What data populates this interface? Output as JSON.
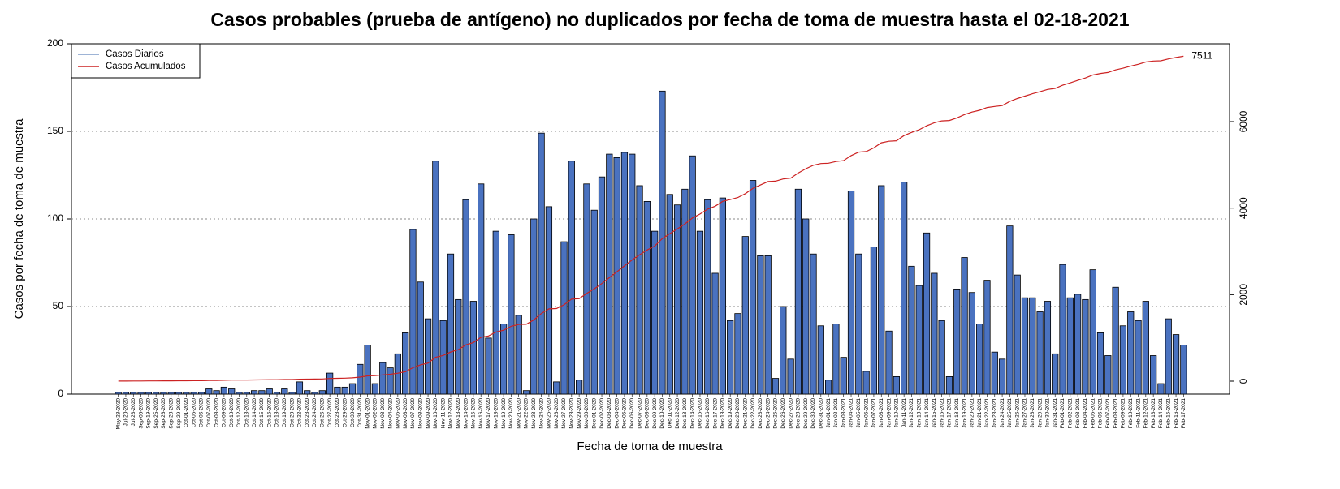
{
  "chart_data": {
    "type": "bar_line",
    "title": "Casos probables (prueba de antígeno) no duplicados por fecha de toma de muestra hasta el 02-18-2021",
    "x_label": "Fecha de toma de muestra",
    "y_label": "Casos por fecha de toma de muestra",
    "annotation": "7511",
    "legend_position": "top-left",
    "grid": true,
    "categories": [
      "May-28-2020",
      "Jul-20-2020",
      "Jul-23-2020",
      "Sep-05-2020",
      "Sep-19-2020",
      "Sep-25-2020",
      "Sep-26-2020",
      "Sep-28-2020",
      "Sep-29-2020",
      "Oct-01-2020",
      "Oct-05-2020",
      "Oct-06-2020",
      "Oct-07-2020",
      "Oct-08-2020",
      "Oct-09-2020",
      "Oct-10-2020",
      "Oct-12-2020",
      "Oct-13-2020",
      "Oct-14-2020",
      "Oct-15-2020",
      "Oct-16-2020",
      "Oct-18-2020",
      "Oct-19-2020",
      "Oct-20-2020",
      "Oct-22-2020",
      "Oct-23-2020",
      "Oct-24-2020",
      "Oct-26-2020",
      "Oct-27-2020",
      "Oct-28-2020",
      "Oct-29-2020",
      "Oct-30-2020",
      "Oct-31-2020",
      "Nov-01-2020",
      "Nov-02-2020",
      "Nov-03-2020",
      "Nov-04-2020",
      "Nov-05-2020",
      "Nov-06-2020",
      "Nov-07-2020",
      "Nov-08-2020",
      "Nov-09-2020",
      "Nov-10-2020",
      "Nov-11-2020",
      "Nov-12-2020",
      "Nov-13-2020",
      "Nov-14-2020",
      "Nov-15-2020",
      "Nov-16-2020",
      "Nov-17-2020",
      "Nov-18-2020",
      "Nov-19-2020",
      "Nov-20-2020",
      "Nov-21-2020",
      "Nov-22-2020",
      "Nov-23-2020",
      "Nov-24-2020",
      "Nov-25-2020",
      "Nov-26-2020",
      "Nov-27-2020",
      "Nov-28-2020",
      "Nov-29-2020",
      "Nov-30-2020",
      "Dec-01-2020",
      "Dec-02-2020",
      "Dec-03-2020",
      "Dec-04-2020",
      "Dec-05-2020",
      "Dec-06-2020",
      "Dec-07-2020",
      "Dec-08-2020",
      "Dec-09-2020",
      "Dec-10-2020",
      "Dec-11-2020",
      "Dec-12-2020",
      "Dec-13-2020",
      "Dec-14-2020",
      "Dec-15-2020",
      "Dec-16-2020",
      "Dec-17-2020",
      "Dec-18-2020",
      "Dec-19-2020",
      "Dec-20-2020",
      "Dec-21-2020",
      "Dec-22-2020",
      "Dec-23-2020",
      "Dec-24-2020",
      "Dec-25-2020",
      "Dec-26-2020",
      "Dec-27-2020",
      "Dec-28-2020",
      "Dec-29-2020",
      "Dec-30-2020",
      "Dec-31-2020",
      "Jan-01-2021",
      "Jan-02-2021",
      "Jan-03-2021",
      "Jan-04-2021",
      "Jan-05-2021",
      "Jan-06-2021",
      "Jan-07-2021",
      "Jan-08-2021",
      "Jan-09-2021",
      "Jan-10-2021",
      "Jan-11-2021",
      "Jan-12-2021",
      "Jan-13-2021",
      "Jan-14-2021",
      "Jan-15-2021",
      "Jan-16-2021",
      "Jan-17-2021",
      "Jan-18-2021",
      "Jan-19-2021",
      "Jan-20-2021",
      "Jan-21-2021",
      "Jan-22-2021",
      "Jan-23-2021",
      "Jan-24-2021",
      "Jan-25-2021",
      "Jan-26-2021",
      "Jan-27-2021",
      "Jan-28-2021",
      "Jan-29-2021",
      "Jan-30-2021",
      "Jan-31-2021",
      "Feb-01-2021",
      "Feb-02-2021",
      "Feb-03-2021",
      "Feb-04-2021",
      "Feb-05-2021",
      "Feb-06-2021",
      "Feb-07-2021",
      "Feb-08-2021",
      "Feb-09-2021",
      "Feb-10-2021",
      "Feb-11-2021",
      "Feb-12-2021",
      "Feb-13-2021",
      "Feb-14-2021",
      "Feb-15-2021",
      "Feb-16-2021",
      "Feb-17-2021"
    ],
    "series": [
      {
        "name": "Casos Diarios",
        "color": "#4a72c0",
        "legend_color": "#7f9cc9",
        "values": [
          1,
          1,
          1,
          1,
          1,
          1,
          1,
          1,
          1,
          1,
          1,
          1,
          3,
          2,
          4,
          3,
          1,
          1,
          2,
          2,
          3,
          1,
          3,
          1,
          7,
          2,
          1,
          2,
          12,
          4,
          4,
          6,
          17,
          28,
          6,
          18,
          15,
          23,
          35,
          94,
          64,
          43,
          133,
          42,
          80,
          54,
          111,
          53,
          120,
          32,
          93,
          40,
          91,
          45,
          2,
          100,
          149,
          107,
          7,
          87,
          133,
          8,
          120,
          105,
          124,
          137,
          135,
          138,
          137,
          119,
          110,
          93,
          173,
          114,
          108,
          117,
          136,
          93,
          111,
          69,
          112,
          42,
          46,
          90,
          122,
          79,
          79,
          9,
          50,
          20,
          117,
          100,
          80,
          39,
          8,
          40,
          21,
          116,
          80,
          13,
          84,
          119,
          36,
          10,
          121,
          73,
          62,
          92,
          69,
          42,
          10,
          60,
          78,
          58,
          40,
          65,
          24,
          20,
          96,
          68,
          55,
          55,
          47,
          53,
          23,
          74,
          55,
          57,
          54,
          71,
          35,
          22,
          61,
          39,
          47,
          42,
          53,
          22,
          6,
          43,
          34,
          28
        ]
      },
      {
        "name": "Casos Acumulados",
        "color": "#cc2222",
        "axis": "y2",
        "values": [
          1,
          2,
          3,
          4,
          5,
          6,
          7,
          8,
          9,
          10,
          11,
          12,
          15,
          17,
          21,
          24,
          25,
          26,
          28,
          30,
          33,
          34,
          37,
          38,
          45,
          47,
          48,
          50,
          62,
          66,
          70,
          76,
          93,
          121,
          127,
          145,
          160,
          183,
          218,
          312,
          376,
          419,
          552,
          594,
          674,
          728,
          839,
          892,
          1012,
          1044,
          1137,
          1177,
          1268,
          1313,
          1315,
          1415,
          1564,
          1671,
          1678,
          1765,
          1898,
          1906,
          2026,
          2131,
          2255,
          2392,
          2527,
          2665,
          2802,
          2921,
          3031,
          3124,
          3297,
          3411,
          3519,
          3636,
          3772,
          3865,
          3976,
          4045,
          4157,
          4199,
          4245,
          4335,
          4457,
          4536,
          4615,
          4624,
          4674,
          4694,
          4811,
          4911,
          4991,
          5030,
          5038,
          5078,
          5099,
          5215,
          5295,
          5308,
          5392,
          5511,
          5547,
          5557,
          5678,
          5751,
          5813,
          5905,
          5974,
          6016,
          6026,
          6086,
          6164,
          6222,
          6262,
          6327,
          6351,
          6371,
          6467,
          6535,
          6590,
          6645,
          6692,
          6745,
          6768,
          6842,
          6897,
          6954,
          7008,
          7079,
          7114,
          7136,
          7197,
          7236,
          7283,
          7325,
          7378,
          7400,
          7406,
          7449,
          7483,
          7511
        ]
      }
    ],
    "ylim": [
      0,
      200
    ],
    "yticks": [
      0,
      50,
      100,
      150,
      200
    ],
    "y2lim": [
      -300,
      7800
    ],
    "y2ticks": [
      0,
      2000,
      4000,
      6000
    ]
  }
}
